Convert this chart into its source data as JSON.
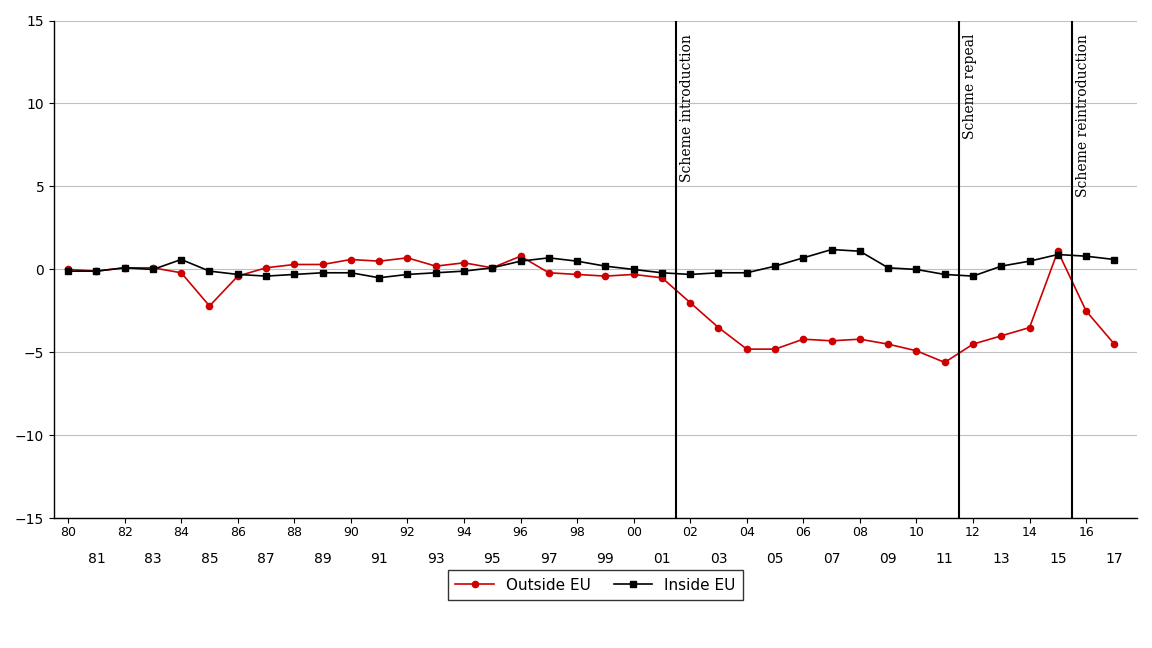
{
  "outside_eu_x_num": [
    1980,
    1981,
    1982,
    1983,
    1984,
    1985,
    1986,
    1987,
    1988,
    1989,
    1990,
    1991,
    1992,
    1993,
    1994,
    1995,
    1996,
    1997,
    1998,
    1999,
    2000,
    2001,
    2002,
    2003,
    2004,
    2005,
    2006,
    2007,
    2008,
    2009,
    2010,
    2011,
    2012,
    2013,
    2014,
    2015,
    2016,
    2017
  ],
  "outside_eu_y": [
    0.0,
    -0.1,
    0.1,
    0.1,
    -0.2,
    -2.2,
    -0.4,
    0.1,
    0.3,
    0.3,
    0.6,
    0.5,
    0.7,
    0.2,
    0.4,
    0.1,
    0.8,
    -0.2,
    -0.3,
    -0.4,
    -0.3,
    -0.5,
    -2.0,
    -3.5,
    -4.8,
    -4.8,
    -4.2,
    -4.3,
    -4.2,
    -4.5,
    -4.9,
    -5.6,
    -4.5,
    -4.0,
    -3.5,
    1.1,
    -2.5,
    -4.5
  ],
  "inside_eu_x_num": [
    1980,
    1981,
    1982,
    1983,
    1984,
    1985,
    1986,
    1987,
    1988,
    1989,
    1990,
    1991,
    1992,
    1993,
    1994,
    1995,
    1996,
    1997,
    1998,
    1999,
    2000,
    2001,
    2002,
    2003,
    2004,
    2005,
    2006,
    2007,
    2008,
    2009,
    2010,
    2011,
    2012,
    2013,
    2014,
    2015,
    2016,
    2017
  ],
  "inside_eu_y": [
    -0.1,
    -0.1,
    0.1,
    0.0,
    0.6,
    -0.1,
    -0.3,
    -0.4,
    -0.3,
    -0.2,
    -0.2,
    -0.5,
    -0.3,
    -0.2,
    -0.1,
    0.1,
    0.5,
    0.7,
    0.5,
    0.2,
    0.0,
    -0.2,
    -0.3,
    -0.2,
    -0.2,
    0.2,
    0.7,
    1.2,
    1.1,
    0.1,
    0.0,
    -0.3,
    -0.4,
    0.2,
    0.5,
    0.9,
    0.8,
    0.6
  ],
  "vline_x": [
    2001.5,
    2011.5,
    2015.5
  ],
  "vline_labels": [
    "Scheme introduction",
    "Scheme repeal",
    "Scheme reintroduction"
  ],
  "ylim": [
    -15,
    15
  ],
  "yticks": [
    -15,
    -10,
    -5,
    0,
    5,
    10,
    15
  ],
  "outside_eu_color": "#cc0000",
  "inside_eu_color": "#000000",
  "bg_color": "#ffffff",
  "grid_color": "#c0c0c0",
  "legend_outside_label": "Outside EU",
  "legend_inside_label": "Inside EU"
}
